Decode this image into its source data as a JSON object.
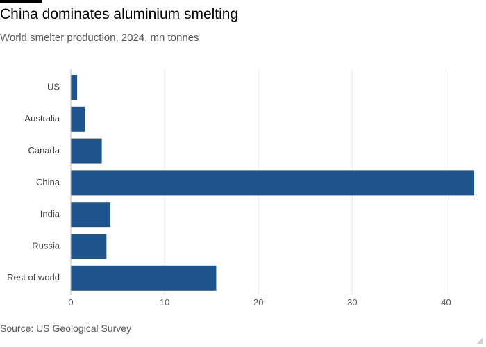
{
  "header": {
    "title": "China dominates aluminium smelting",
    "subtitle": "World smelter production, 2024, mn tonnes"
  },
  "footer": {
    "source": "Source: US Geological Survey"
  },
  "colors": {
    "bar": "#1e558c",
    "grid": "#e8e8e8",
    "axis_text": "#57575c",
    "label_text": "#3c3c41"
  },
  "chart_data": {
    "type": "bar",
    "orientation": "horizontal",
    "title": "China dominates aluminium smelting",
    "subtitle": "World smelter production, 2024, mn tonnes",
    "categories": [
      "US",
      "Australia",
      "Canada",
      "China",
      "India",
      "Russia",
      "Rest of world"
    ],
    "values": [
      0.67,
      1.5,
      3.3,
      43,
      4.2,
      3.8,
      15.5
    ],
    "xlabel": "",
    "ylabel": "",
    "xlim": [
      0,
      43
    ],
    "xticks": [
      0,
      10,
      20,
      30,
      40
    ],
    "grid": "vertical",
    "legend": "none",
    "source": "Source: US Geological Survey"
  }
}
